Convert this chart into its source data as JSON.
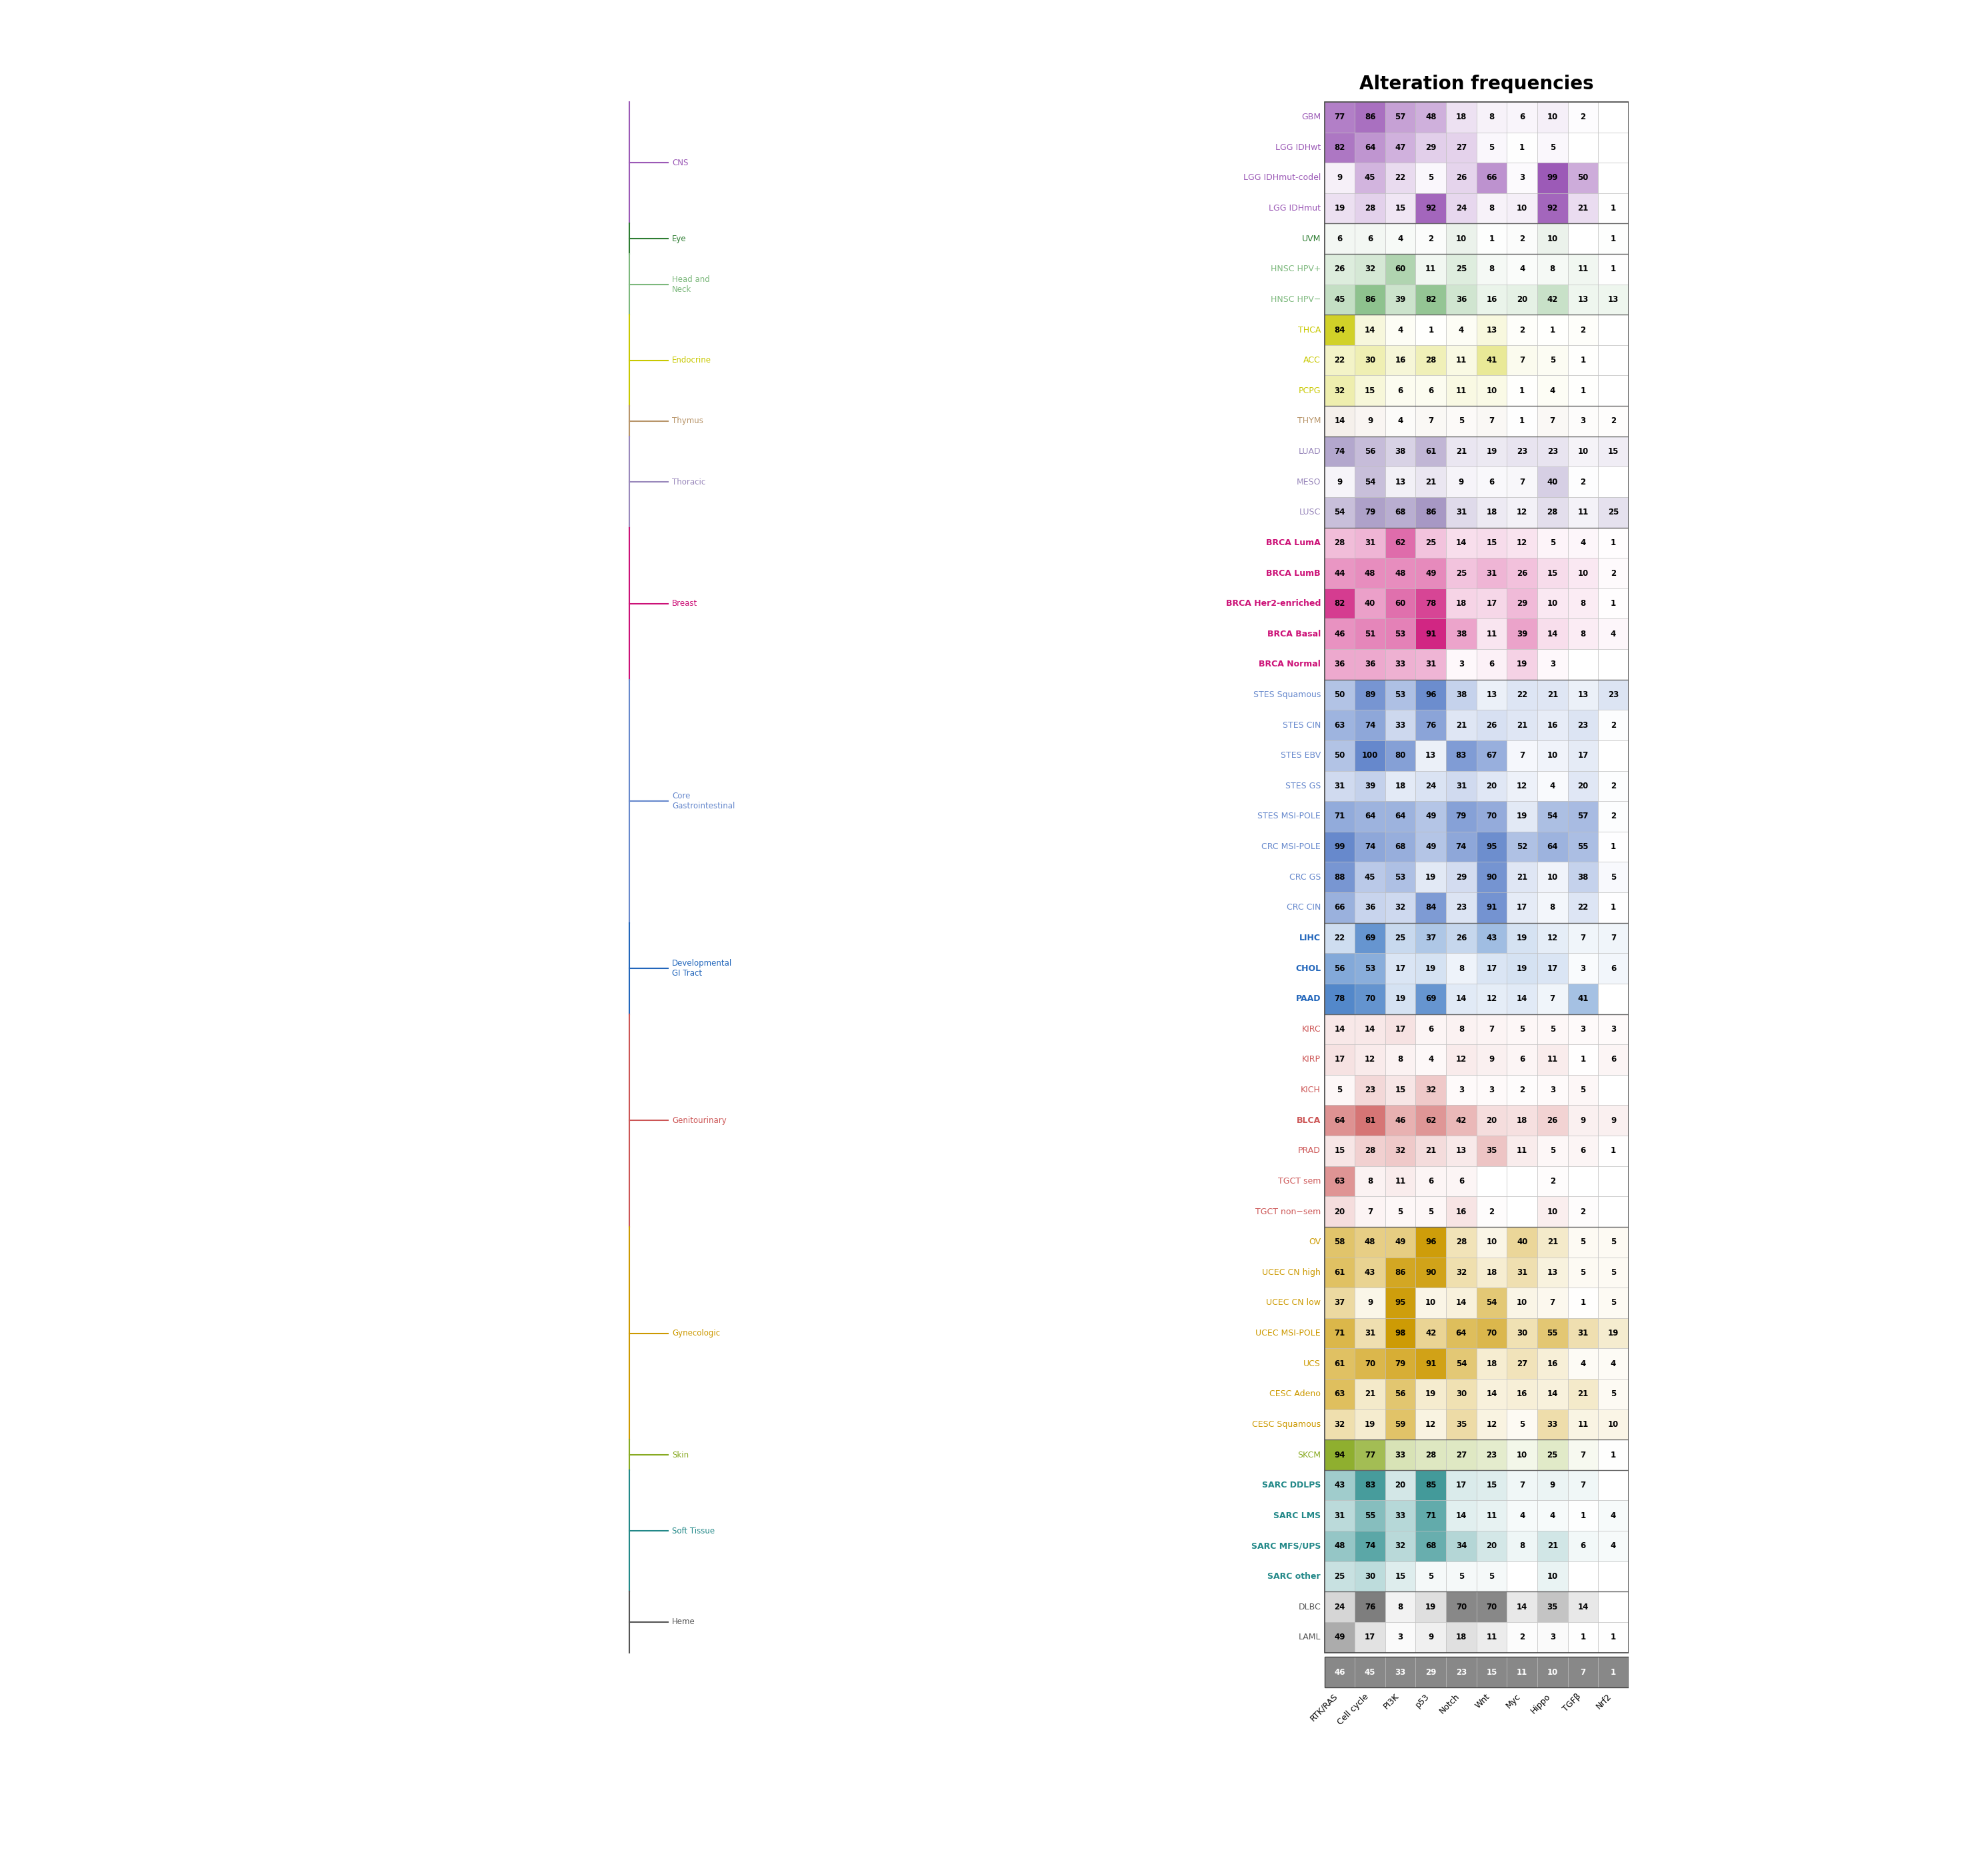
{
  "title": "Alteration frequencies",
  "columns": [
    "RTK/RAS",
    "Cell cycle",
    "PI3K",
    "p53",
    "Notch",
    "Wnt",
    "Myc",
    "Hippo",
    "TGFβ",
    "Nrf2"
  ],
  "rows": [
    {
      "label": "GBM",
      "group": "CNS",
      "color": "#9B59B6",
      "bold": false,
      "values": [
        77,
        86,
        57,
        48,
        18,
        8,
        6,
        10,
        2,
        null
      ]
    },
    {
      "label": "LGG IDHwt",
      "group": "CNS",
      "color": "#9B59B6",
      "bold": false,
      "values": [
        82,
        64,
        47,
        29,
        27,
        5,
        1,
        5,
        null,
        null
      ]
    },
    {
      "label": "LGG IDHmut-codel",
      "group": "CNS",
      "color": "#9B59B6",
      "bold": false,
      "values": [
        9,
        45,
        22,
        5,
        26,
        66,
        3,
        99,
        50,
        null
      ]
    },
    {
      "label": "LGG IDHmut",
      "group": "CNS",
      "color": "#9B59B6",
      "bold": false,
      "values": [
        19,
        28,
        15,
        92,
        24,
        8,
        10,
        92,
        21,
        1
      ]
    },
    {
      "label": "UVM",
      "group": "Eye",
      "color": "#2E7D32",
      "bold": false,
      "values": [
        6,
        6,
        4,
        2,
        10,
        1,
        2,
        10,
        null,
        1
      ]
    },
    {
      "label": "HNSC HPV+",
      "group": "Head and Neck",
      "color": "#7CB87C",
      "bold": false,
      "values": [
        26,
        32,
        60,
        11,
        25,
        8,
        4,
        8,
        11,
        1
      ]
    },
    {
      "label": "HNSC HPV−",
      "group": "Head and Neck",
      "color": "#7CB87C",
      "bold": false,
      "values": [
        45,
        86,
        39,
        82,
        36,
        16,
        20,
        42,
        13,
        13
      ]
    },
    {
      "label": "THCA",
      "group": "Endocrine",
      "color": "#C8C800",
      "bold": false,
      "values": [
        84,
        14,
        4,
        1,
        4,
        13,
        2,
        1,
        2,
        null
      ]
    },
    {
      "label": "ACC",
      "group": "Endocrine",
      "color": "#C8C800",
      "bold": false,
      "values": [
        22,
        30,
        16,
        28,
        11,
        41,
        7,
        5,
        1,
        null
      ]
    },
    {
      "label": "PCPG",
      "group": "Endocrine",
      "color": "#C8C800",
      "bold": false,
      "values": [
        32,
        15,
        6,
        6,
        11,
        10,
        1,
        4,
        1,
        null
      ]
    },
    {
      "label": "THYM",
      "group": "Thymus",
      "color": "#B8956A",
      "bold": false,
      "values": [
        14,
        9,
        4,
        7,
        5,
        7,
        1,
        7,
        3,
        2
      ]
    },
    {
      "label": "LUAD",
      "group": "Thoracic",
      "color": "#9988BB",
      "bold": false,
      "values": [
        74,
        56,
        38,
        61,
        21,
        19,
        23,
        23,
        10,
        15
      ]
    },
    {
      "label": "MESO",
      "group": "Thoracic",
      "color": "#9988BB",
      "bold": false,
      "values": [
        9,
        54,
        13,
        21,
        9,
        6,
        7,
        40,
        2,
        null
      ]
    },
    {
      "label": "LUSC",
      "group": "Thoracic",
      "color": "#9988BB",
      "bold": false,
      "values": [
        54,
        79,
        68,
        86,
        31,
        18,
        12,
        28,
        11,
        25
      ]
    },
    {
      "label": "BRCA LumA",
      "group": "Breast",
      "color": "#CC1177",
      "bold": true,
      "values": [
        28,
        31,
        62,
        25,
        14,
        15,
        12,
        5,
        4,
        1
      ]
    },
    {
      "label": "BRCA LumB",
      "group": "Breast",
      "color": "#CC1177",
      "bold": true,
      "values": [
        44,
        48,
        48,
        49,
        25,
        31,
        26,
        15,
        10,
        2
      ]
    },
    {
      "label": "BRCA Her2-enriched",
      "group": "Breast",
      "color": "#CC1177",
      "bold": true,
      "values": [
        82,
        40,
        60,
        78,
        18,
        17,
        29,
        10,
        8,
        1
      ]
    },
    {
      "label": "BRCA Basal",
      "group": "Breast",
      "color": "#CC1177",
      "bold": true,
      "values": [
        46,
        51,
        53,
        91,
        38,
        11,
        39,
        14,
        8,
        4
      ]
    },
    {
      "label": "BRCA Normal",
      "group": "Breast",
      "color": "#CC1177",
      "bold": true,
      "values": [
        36,
        36,
        33,
        31,
        3,
        6,
        19,
        3,
        null,
        null
      ]
    },
    {
      "label": "STES Squamous",
      "group": "Core Gastrointestinal",
      "color": "#6688CC",
      "bold": false,
      "values": [
        50,
        89,
        53,
        96,
        38,
        13,
        22,
        21,
        13,
        23
      ]
    },
    {
      "label": "STES CIN",
      "group": "Core Gastrointestinal",
      "color": "#6688CC",
      "bold": false,
      "values": [
        63,
        74,
        33,
        76,
        21,
        26,
        21,
        16,
        23,
        2
      ]
    },
    {
      "label": "STES EBV",
      "group": "Core Gastrointestinal",
      "color": "#6688CC",
      "bold": false,
      "values": [
        50,
        100,
        80,
        13,
        83,
        67,
        7,
        10,
        17,
        null
      ]
    },
    {
      "label": "STES GS",
      "group": "Core Gastrointestinal",
      "color": "#6688CC",
      "bold": false,
      "values": [
        31,
        39,
        18,
        24,
        31,
        20,
        12,
        4,
        20,
        2
      ]
    },
    {
      "label": "STES MSI-POLE",
      "group": "Core Gastrointestinal",
      "color": "#6688CC",
      "bold": false,
      "values": [
        71,
        64,
        64,
        49,
        79,
        70,
        19,
        54,
        57,
        2
      ]
    },
    {
      "label": "CRC MSI-POLE",
      "group": "Core Gastrointestinal",
      "color": "#6688CC",
      "bold": false,
      "values": [
        99,
        74,
        68,
        49,
        74,
        95,
        52,
        64,
        55,
        1
      ]
    },
    {
      "label": "CRC GS",
      "group": "Core Gastrointestinal",
      "color": "#6688CC",
      "bold": false,
      "values": [
        88,
        45,
        53,
        19,
        29,
        90,
        21,
        10,
        38,
        5
      ]
    },
    {
      "label": "CRC CIN",
      "group": "Core Gastrointestinal",
      "color": "#6688CC",
      "bold": false,
      "values": [
        66,
        36,
        32,
        84,
        23,
        91,
        17,
        8,
        22,
        1
      ]
    },
    {
      "label": "LIHC",
      "group": "Developmental GI Tract",
      "color": "#2266BB",
      "bold": true,
      "values": [
        22,
        69,
        25,
        37,
        26,
        43,
        19,
        12,
        7,
        7
      ]
    },
    {
      "label": "CHOL",
      "group": "Developmental GI Tract",
      "color": "#2266BB",
      "bold": true,
      "values": [
        56,
        53,
        17,
        19,
        8,
        17,
        19,
        17,
        3,
        6
      ]
    },
    {
      "label": "PAAD",
      "group": "Developmental GI Tract",
      "color": "#2266BB",
      "bold": true,
      "values": [
        78,
        70,
        19,
        69,
        14,
        12,
        14,
        7,
        41,
        null
      ]
    },
    {
      "label": "KIRC",
      "group": "Genitourinary",
      "color": "#CC5555",
      "bold": false,
      "values": [
        14,
        14,
        17,
        6,
        8,
        7,
        5,
        5,
        3,
        3
      ]
    },
    {
      "label": "KIRP",
      "group": "Genitourinary",
      "color": "#CC5555",
      "bold": false,
      "values": [
        17,
        12,
        8,
        4,
        12,
        9,
        6,
        11,
        1,
        6
      ]
    },
    {
      "label": "KICH",
      "group": "Genitourinary",
      "color": "#CC5555",
      "bold": false,
      "values": [
        5,
        23,
        15,
        32,
        3,
        3,
        2,
        3,
        5,
        null
      ]
    },
    {
      "label": "BLCA",
      "group": "Genitourinary",
      "color": "#CC5555",
      "bold": true,
      "values": [
        64,
        81,
        46,
        62,
        42,
        20,
        18,
        26,
        9,
        9
      ]
    },
    {
      "label": "PRAD",
      "group": "Genitourinary",
      "color": "#CC5555",
      "bold": false,
      "values": [
        15,
        28,
        32,
        21,
        13,
        35,
        11,
        5,
        6,
        1
      ]
    },
    {
      "label": "TGCT sem",
      "group": "Genitourinary",
      "color": "#CC5555",
      "bold": false,
      "values": [
        63,
        8,
        11,
        6,
        6,
        null,
        null,
        2,
        null,
        null
      ]
    },
    {
      "label": "TGCT non−sem",
      "group": "Genitourinary",
      "color": "#CC5555",
      "bold": false,
      "values": [
        20,
        7,
        5,
        5,
        16,
        2,
        null,
        10,
        2,
        null
      ]
    },
    {
      "label": "OV",
      "group": "Gynecologic",
      "color": "#CC9900",
      "bold": false,
      "values": [
        58,
        48,
        49,
        96,
        28,
        10,
        40,
        21,
        5,
        5
      ]
    },
    {
      "label": "UCEC CN high",
      "group": "Gynecologic",
      "color": "#CC9900",
      "bold": false,
      "values": [
        61,
        43,
        86,
        90,
        32,
        18,
        31,
        13,
        5,
        5
      ]
    },
    {
      "label": "UCEC CN low",
      "group": "Gynecologic",
      "color": "#CC9900",
      "bold": false,
      "values": [
        37,
        9,
        95,
        10,
        14,
        54,
        10,
        7,
        1,
        5
      ]
    },
    {
      "label": "UCEC MSI-POLE",
      "group": "Gynecologic",
      "color": "#CC9900",
      "bold": false,
      "values": [
        71,
        31,
        98,
        42,
        64,
        70,
        30,
        55,
        31,
        19
      ]
    },
    {
      "label": "UCS",
      "group": "Gynecologic",
      "color": "#CC9900",
      "bold": false,
      "values": [
        61,
        70,
        79,
        91,
        54,
        18,
        27,
        16,
        4,
        4
      ]
    },
    {
      "label": "CESC Adeno",
      "group": "Gynecologic",
      "color": "#CC9900",
      "bold": false,
      "values": [
        63,
        21,
        56,
        19,
        30,
        14,
        16,
        14,
        21,
        5
      ]
    },
    {
      "label": "CESC Squamous",
      "group": "Gynecologic",
      "color": "#CC9900",
      "bold": false,
      "values": [
        32,
        19,
        59,
        12,
        35,
        12,
        5,
        33,
        11,
        10
      ]
    },
    {
      "label": "SKCM",
      "group": "Skin",
      "color": "#88AA22",
      "bold": false,
      "values": [
        94,
        77,
        33,
        28,
        27,
        23,
        10,
        25,
        7,
        1
      ]
    },
    {
      "label": "SARC DDLPS",
      "group": "Soft Tissue",
      "color": "#228888",
      "bold": true,
      "values": [
        43,
        83,
        20,
        85,
        17,
        15,
        7,
        9,
        7,
        null
      ]
    },
    {
      "label": "SARC LMS",
      "group": "Soft Tissue",
      "color": "#228888",
      "bold": true,
      "values": [
        31,
        55,
        33,
        71,
        14,
        11,
        4,
        4,
        1,
        4
      ]
    },
    {
      "label": "SARC MFS/UPS",
      "group": "Soft Tissue",
      "color": "#228888",
      "bold": true,
      "values": [
        48,
        74,
        32,
        68,
        34,
        20,
        8,
        21,
        6,
        4
      ]
    },
    {
      "label": "SARC other",
      "group": "Soft Tissue",
      "color": "#228888",
      "bold": true,
      "values": [
        25,
        30,
        15,
        5,
        5,
        5,
        null,
        10,
        null,
        null
      ]
    },
    {
      "label": "DLBC",
      "group": "Heme",
      "color": "#555555",
      "bold": false,
      "values": [
        24,
        76,
        8,
        19,
        70,
        70,
        14,
        35,
        14,
        null
      ]
    },
    {
      "label": "LAML",
      "group": "Heme",
      "color": "#555555",
      "bold": false,
      "values": [
        49,
        17,
        3,
        9,
        18,
        11,
        2,
        3,
        1,
        1
      ]
    }
  ],
  "footer_row": [
    46,
    45,
    33,
    29,
    23,
    15,
    11,
    10,
    7,
    1
  ],
  "group_colors": {
    "CNS": "#9B59B6",
    "Eye": "#2E7D32",
    "Head and Neck": "#7CB87C",
    "Endocrine": "#C8C800",
    "Thymus": "#B8956A",
    "Thoracic": "#9988BB",
    "Breast": "#CC1177",
    "Core Gastrointestinal": "#6688CC",
    "Developmental GI Tract": "#2266BB",
    "Genitourinary": "#CC5555",
    "Gynecologic": "#CC9900",
    "Skin": "#88AA22",
    "Soft Tissue": "#228888",
    "Heme": "#555555"
  },
  "group_label_text": {
    "CNS": "CNS",
    "Eye": "Eye",
    "Head and Neck": "Head and\nNeck",
    "Endocrine": "Endocrine",
    "Thymus": "Thymus",
    "Thoracic": "Thoracic",
    "Breast": "Breast",
    "Core Gastrointestinal": "Core\nGastrointestinal",
    "Developmental GI Tract": "Developmental\nGI Tract",
    "Genitourinary": "Genitourinary",
    "Gynecologic": "Gynecologic",
    "Skin": "Skin",
    "Soft Tissue": "Soft Tissue",
    "Heme": "Heme"
  }
}
